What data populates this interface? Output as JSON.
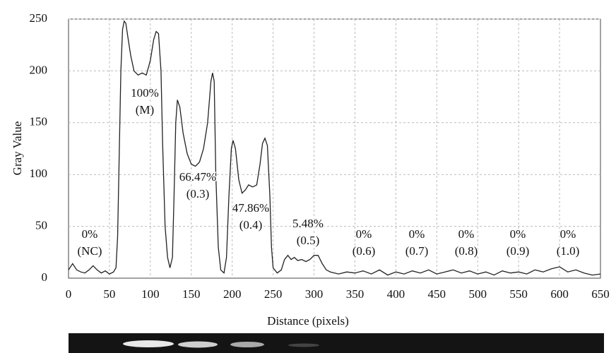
{
  "chart_data": {
    "type": "line",
    "color": "#222222",
    "x_label": "Distance (pixels)",
    "y_label": "Gray Value",
    "xlim": [
      0,
      650
    ],
    "ylim": [
      0,
      250
    ],
    "xticks": [
      0,
      50,
      100,
      150,
      200,
      250,
      300,
      350,
      400,
      450,
      500,
      550,
      600,
      650
    ],
    "yticks": [
      0,
      50,
      100,
      150,
      200,
      250
    ],
    "grid": true,
    "x": [
      0,
      5,
      10,
      15,
      20,
      25,
      30,
      35,
      40,
      45,
      50,
      55,
      58,
      60,
      62,
      64,
      66,
      68,
      70,
      73,
      76,
      80,
      85,
      90,
      95,
      100,
      104,
      107,
      110,
      113,
      115,
      118,
      121,
      124,
      127,
      129,
      131,
      133,
      136,
      140,
      145,
      150,
      155,
      160,
      165,
      170,
      174,
      176,
      178,
      180,
      183,
      186,
      190,
      193,
      196,
      199,
      201,
      204,
      208,
      212,
      216,
      220,
      225,
      230,
      234,
      237,
      240,
      243,
      246,
      248,
      250,
      255,
      260,
      264,
      268,
      272,
      276,
      280,
      285,
      290,
      295,
      300,
      305,
      310,
      315,
      320,
      330,
      340,
      350,
      360,
      370,
      380,
      390,
      400,
      410,
      420,
      430,
      440,
      450,
      460,
      470,
      480,
      490,
      500,
      510,
      520,
      530,
      540,
      550,
      560,
      570,
      580,
      590,
      600,
      610,
      620,
      630,
      640,
      650
    ],
    "values": [
      8,
      14,
      8,
      6,
      5,
      8,
      12,
      8,
      5,
      7,
      4,
      6,
      10,
      40,
      120,
      200,
      240,
      248,
      246,
      230,
      215,
      200,
      196,
      198,
      196,
      210,
      230,
      238,
      236,
      200,
      130,
      50,
      20,
      10,
      20,
      80,
      150,
      172,
      165,
      140,
      120,
      110,
      108,
      112,
      125,
      150,
      190,
      198,
      190,
      100,
      30,
      8,
      5,
      20,
      80,
      125,
      133,
      125,
      95,
      82,
      85,
      90,
      88,
      90,
      110,
      130,
      135,
      128,
      80,
      30,
      10,
      5,
      8,
      18,
      22,
      18,
      20,
      17,
      18,
      16,
      18,
      22,
      22,
      14,
      8,
      6,
      4,
      6,
      5,
      7,
      4,
      8,
      3,
      6,
      4,
      7,
      5,
      8,
      4,
      6,
      8,
      5,
      7,
      4,
      6,
      3,
      7,
      5,
      6,
      4,
      8,
      6,
      9,
      11,
      6,
      8,
      5,
      3,
      4
    ],
    "annotations": [
      [
        "0%",
        "(NC)"
      ],
      [
        "100%",
        "(M)"
      ],
      [
        "66.47%",
        "(0.3)"
      ],
      [
        "47.86%",
        "(0.4)"
      ],
      [
        "5.48%",
        "(0.5)"
      ],
      [
        "0%",
        "(0.6)"
      ],
      [
        "0%",
        "(0.7)"
      ],
      [
        "0%",
        "(0.8)"
      ],
      [
        "0%",
        "(0.9)"
      ],
      [
        "0%",
        "(1.0)"
      ]
    ]
  }
}
